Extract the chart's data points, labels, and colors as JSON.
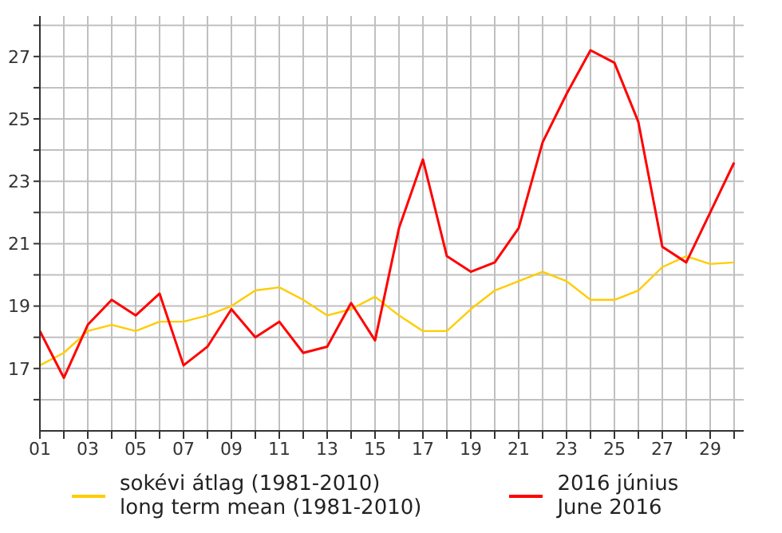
{
  "chart_data": {
    "type": "line",
    "x": [
      1,
      2,
      3,
      4,
      5,
      6,
      7,
      8,
      9,
      10,
      11,
      12,
      13,
      14,
      15,
      16,
      17,
      18,
      19,
      20,
      21,
      22,
      23,
      24,
      25,
      26,
      27,
      28,
      29,
      30
    ],
    "series": [
      {
        "name": "sokévi átlag (1981-2010)\nlong term mean (1981-2010)",
        "color": "#ffcc00",
        "values": [
          17.1,
          17.5,
          18.2,
          18.4,
          18.2,
          18.5,
          18.5,
          18.7,
          19.0,
          19.5,
          19.6,
          19.2,
          18.7,
          18.9,
          19.3,
          18.7,
          18.2,
          18.2,
          18.9,
          19.5,
          19.8,
          20.1,
          19.8,
          19.2,
          19.2,
          19.5,
          20.25,
          20.6,
          20.35,
          20.4
        ]
      },
      {
        "name": "2016 június\nJune 2016",
        "color": "#ff0000",
        "values": [
          18.2,
          16.7,
          18.4,
          19.2,
          18.7,
          19.4,
          17.1,
          17.7,
          18.9,
          18.0,
          18.5,
          17.5,
          17.7,
          19.1,
          17.9,
          21.5,
          23.7,
          20.6,
          20.1,
          20.4,
          21.5,
          24.25,
          25.8,
          27.2,
          26.8,
          24.9,
          20.9,
          20.4,
          22.0,
          23.6
        ]
      }
    ],
    "xlim": [
      1,
      30.4
    ],
    "xticks": [
      {
        "value": 1,
        "label": "01"
      },
      {
        "value": 2,
        "label": null
      },
      {
        "value": 3,
        "label": "03"
      },
      {
        "value": 4,
        "label": null
      },
      {
        "value": 5,
        "label": "05"
      },
      {
        "value": 6,
        "label": null
      },
      {
        "value": 7,
        "label": "07"
      },
      {
        "value": 8,
        "label": null
      },
      {
        "value": 9,
        "label": "09"
      },
      {
        "value": 10,
        "label": null
      },
      {
        "value": 11,
        "label": "11"
      },
      {
        "value": 12,
        "label": null
      },
      {
        "value": 13,
        "label": "13"
      },
      {
        "value": 14,
        "label": null
      },
      {
        "value": 15,
        "label": "15"
      },
      {
        "value": 16,
        "label": null
      },
      {
        "value": 17,
        "label": "17"
      },
      {
        "value": 18,
        "label": null
      },
      {
        "value": 19,
        "label": "19"
      },
      {
        "value": 20,
        "label": null
      },
      {
        "value": 21,
        "label": "21"
      },
      {
        "value": 22,
        "label": null
      },
      {
        "value": 23,
        "label": "23"
      },
      {
        "value": 24,
        "label": null
      },
      {
        "value": 25,
        "label": "25"
      },
      {
        "value": 26,
        "label": null
      },
      {
        "value": 27,
        "label": "27"
      },
      {
        "value": 28,
        "label": null
      },
      {
        "value": 29,
        "label": "29"
      },
      {
        "value": 30,
        "label": null
      }
    ],
    "ylim": [
      15,
      28.3
    ],
    "yticks": [
      {
        "value": 16,
        "label": null
      },
      17,
      {
        "value": 18,
        "label": null
      },
      19,
      {
        "value": 20,
        "label": null
      },
      21,
      {
        "value": 22,
        "label": null
      },
      23,
      {
        "value": 24,
        "label": null
      },
      25,
      {
        "value": 26,
        "label": null
      },
      27,
      {
        "value": 28,
        "label": null
      }
    ],
    "grid": true,
    "legend": "bottom",
    "marker": "none",
    "line_style": "solid"
  }
}
